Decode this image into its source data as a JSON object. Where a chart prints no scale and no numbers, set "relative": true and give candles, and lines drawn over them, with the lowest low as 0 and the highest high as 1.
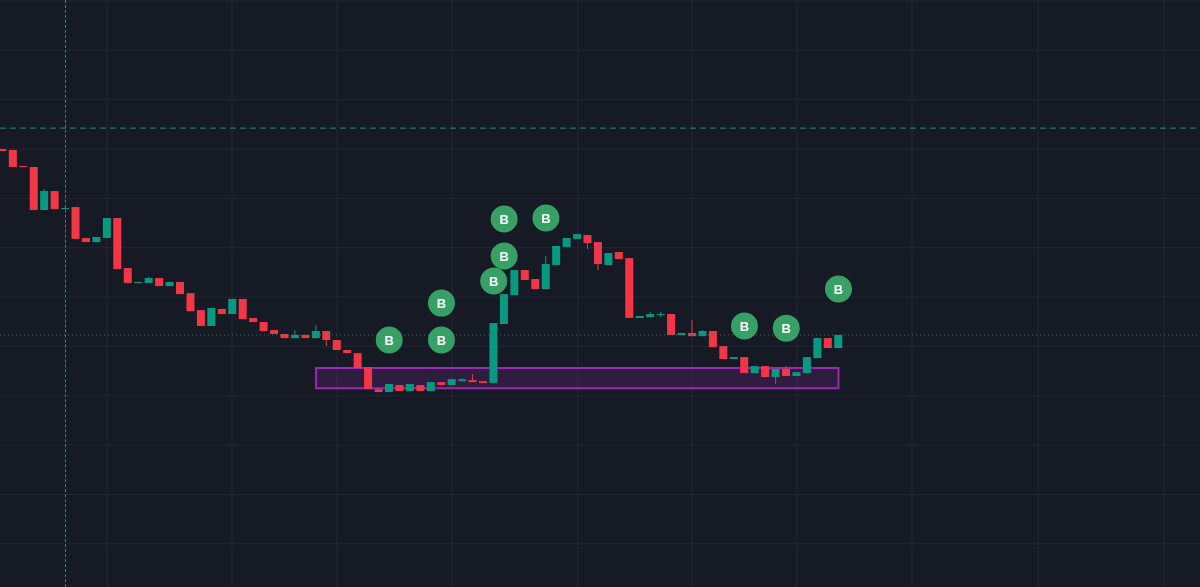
{
  "chart_data": {
    "type": "candlestick",
    "relative": true,
    "tick_labels": false,
    "grid": true,
    "categories": [
      null,
      null,
      null,
      null,
      null,
      null,
      null,
      null,
      null,
      null,
      null,
      null,
      null,
      null,
      null,
      null,
      null,
      null,
      null,
      null,
      null,
      null,
      null,
      null,
      null,
      null,
      null,
      null,
      null,
      null,
      null,
      null,
      null,
      null,
      null,
      null,
      null,
      null,
      null,
      null,
      null,
      null,
      null,
      null,
      null,
      null,
      null,
      null,
      null,
      null,
      null,
      null,
      null,
      null,
      null,
      null,
      null,
      null,
      null,
      null,
      null,
      null,
      null,
      null,
      null,
      null,
      null,
      null,
      null,
      null,
      null,
      null,
      null,
      null,
      null,
      null,
      null,
      null,
      null,
      null,
      null
    ],
    "ohlc": [
      [
        1,
        1,
        0.992,
        0.992
      ],
      [
        0.996,
        0.996,
        0.926,
        0.926
      ],
      [
        0.93,
        0.93,
        0.926,
        0.926
      ],
      [
        0.926,
        0.926,
        0.749,
        0.749
      ],
      [
        0.749,
        0.835,
        0.749,
        0.827
      ],
      [
        0.827,
        0.827,
        0.753,
        0.753
      ],
      [
        0.753,
        0.761,
        0.753,
        0.757
      ],
      [
        0.761,
        0.761,
        0.63,
        0.63
      ],
      [
        0.634,
        0.634,
        0.617,
        0.617
      ],
      [
        0.617,
        0.638,
        0.617,
        0.638
      ],
      [
        0.634,
        0.716,
        0.634,
        0.716
      ],
      [
        0.716,
        0.716,
        0.506,
        0.506
      ],
      [
        0.51,
        0.51,
        0.449,
        0.449
      ],
      [
        0.449,
        0.453,
        0.449,
        0.453
      ],
      [
        0.449,
        0.473,
        0.449,
        0.469
      ],
      [
        0.469,
        0.469,
        0.436,
        0.436
      ],
      [
        0.436,
        0.453,
        0.436,
        0.453
      ],
      [
        0.453,
        0.453,
        0.403,
        0.403
      ],
      [
        0.407,
        0.407,
        0.333,
        0.333
      ],
      [
        0.337,
        0.337,
        0.272,
        0.272
      ],
      [
        0.272,
        0.346,
        0.272,
        0.346
      ],
      [
        0.342,
        0.342,
        0.321,
        0.321
      ],
      [
        0.321,
        0.383,
        0.321,
        0.383
      ],
      [
        0.383,
        0.383,
        0.3,
        0.3
      ],
      [
        0.305,
        0.305,
        0.288,
        0.288
      ],
      [
        0.288,
        0.288,
        0.251,
        0.251
      ],
      [
        0.255,
        0.255,
        0.239,
        0.239
      ],
      [
        0.239,
        0.239,
        0.222,
        0.222
      ],
      [
        0.222,
        0.255,
        0.222,
        0.235
      ],
      [
        0.235,
        0.235,
        0.222,
        0.222
      ],
      [
        0.222,
        0.276,
        0.222,
        0.251
      ],
      [
        0.251,
        0.251,
        0.189,
        0.214
      ],
      [
        0.214,
        0.214,
        0.173,
        0.173
      ],
      [
        0.173,
        0.173,
        0.16,
        0.16
      ],
      [
        0.16,
        0.16,
        0.099,
        0.099
      ],
      [
        0.103,
        0.103,
        0.012,
        0.012
      ],
      [
        0.012,
        0.012,
        0,
        0
      ],
      [
        0,
        0.033,
        0,
        0.033
      ],
      [
        0.029,
        0.029,
        0.004,
        0.004
      ],
      [
        0.004,
        0.033,
        0.004,
        0.033
      ],
      [
        0.029,
        0.029,
        0.004,
        0.004
      ],
      [
        0.004,
        0.041,
        0.004,
        0.041
      ],
      [
        0.041,
        0.041,
        0.029,
        0.029
      ],
      [
        0.029,
        0.053,
        0.029,
        0.053
      ],
      [
        0.045,
        0.058,
        0.045,
        0.053
      ],
      [
        0.049,
        0.074,
        0.041,
        0.041
      ],
      [
        0.045,
        0.045,
        0.037,
        0.037
      ],
      [
        0.037,
        0.284,
        0.037,
        0.284
      ],
      [
        0.28,
        0.403,
        0.28,
        0.403
      ],
      [
        0.399,
        0.502,
        0.399,
        0.502
      ],
      [
        0.502,
        0.502,
        0.461,
        0.461
      ],
      [
        0.465,
        0.465,
        0.424,
        0.424
      ],
      [
        0.424,
        0.56,
        0.424,
        0.527
      ],
      [
        0.523,
        0.601,
        0.523,
        0.601
      ],
      [
        0.597,
        0.634,
        0.597,
        0.634
      ],
      [
        0.63,
        0.65,
        0.63,
        0.65
      ],
      [
        0.646,
        0.646,
        0.588,
        0.613
      ],
      [
        0.617,
        0.617,
        0.502,
        0.527
      ],
      [
        0.523,
        0.572,
        0.523,
        0.572
      ],
      [
        0.576,
        0.576,
        0.547,
        0.547
      ],
      [
        0.551,
        0.551,
        0.305,
        0.305
      ],
      [
        0.305,
        0.313,
        0.305,
        0.313
      ],
      [
        0.309,
        0.329,
        0.309,
        0.321
      ],
      [
        0.317,
        0.329,
        0.309,
        0.321
      ],
      [
        0.321,
        0.321,
        0.235,
        0.235
      ],
      [
        0.235,
        0.243,
        0.235,
        0.243
      ],
      [
        0.243,
        0.296,
        0.23,
        0.23
      ],
      [
        0.23,
        0.255,
        0.23,
        0.251
      ],
      [
        0.251,
        0.251,
        0.185,
        0.185
      ],
      [
        0.189,
        0.189,
        0.136,
        0.136
      ],
      [
        0.136,
        0.144,
        0.136,
        0.144
      ],
      [
        0.144,
        0.144,
        0.078,
        0.078
      ],
      [
        0.078,
        0.107,
        0.078,
        0.107
      ],
      [
        0.107,
        0.107,
        0.062,
        0.062
      ],
      [
        0.062,
        0.095,
        0.033,
        0.095
      ],
      [
        0.095,
        0.107,
        0.066,
        0.066
      ],
      [
        0.066,
        0.082,
        0.066,
        0.082
      ],
      [
        0.078,
        0.144,
        0.078,
        0.144
      ],
      [
        0.14,
        0.222,
        0.14,
        0.222
      ],
      [
        0.222,
        0.222,
        0.181,
        0.181
      ],
      [
        0.181,
        0.235,
        0.181,
        0.235
      ]
    ],
    "colors": [
      "#f23645",
      "#f23645",
      "#f23645",
      "#f23645",
      "#089981",
      "#f23645",
      "#089981",
      "#f23645",
      "#f23645",
      "#089981",
      "#089981",
      "#f23645",
      "#f23645",
      "#089981",
      "#089981",
      "#f23645",
      "#089981",
      "#f23645",
      "#f23645",
      "#f23645",
      "#089981",
      "#f23645",
      "#089981",
      "#f23645",
      "#f23645",
      "#f23645",
      "#f23645",
      "#f23645",
      "#089981",
      "#f23645",
      "#089981",
      "#f23645",
      "#f23645",
      "#f23645",
      "#f23645",
      "#f23645",
      "#f23645",
      "#089981",
      "#f23645",
      "#089981",
      "#f23645",
      "#089981",
      "#f23645",
      "#089981",
      "#089981",
      "#f23645",
      "#f23645",
      "#089981",
      "#089981",
      "#089981",
      "#f23645",
      "#f23645",
      "#089981",
      "#089981",
      "#089981",
      "#089981",
      "#f23645",
      "#f23645",
      "#089981",
      "#f23645",
      "#f23645",
      "#089981",
      "#089981",
      "#089981",
      "#f23645",
      "#089981",
      "#f23645",
      "#089981",
      "#f23645",
      "#f23645",
      "#089981",
      "#f23645",
      "#089981",
      "#f23645",
      "#089981",
      "#f23645",
      "#089981",
      "#089981",
      "#089981",
      "#f23645",
      "#089981"
    ],
    "series": [
      {
        "type": "scatter",
        "name": "B",
        "color": "#37a064",
        "marker": "circle",
        "values": [
          null,
          null,
          null,
          null,
          null,
          null,
          null,
          null,
          null,
          null,
          null,
          null,
          null,
          null,
          null,
          null,
          null,
          null,
          null,
          null,
          null,
          null,
          null,
          null,
          null,
          null,
          null,
          null,
          null,
          null,
          null,
          null,
          null,
          null,
          null,
          null,
          null,
          0.214,
          null,
          null,
          null,
          null,
          0.214,
          null,
          null,
          null,
          null,
          0.457,
          0.56,
          null,
          null,
          null,
          0.716,
          null,
          null,
          null,
          null,
          null,
          null,
          null,
          null,
          null,
          null,
          null,
          null,
          null,
          null,
          null,
          null,
          null,
          null,
          0.272,
          null,
          null,
          null,
          0.263,
          null,
          null,
          null,
          null,
          0.424
        ]
      },
      {
        "type": "scatter",
        "name": "B",
        "color": "#37a064",
        "marker": "circle",
        "values": [
          null,
          null,
          null,
          null,
          null,
          null,
          null,
          null,
          null,
          null,
          null,
          null,
          null,
          null,
          null,
          null,
          null,
          null,
          null,
          null,
          null,
          null,
          null,
          null,
          null,
          null,
          null,
          null,
          null,
          null,
          null,
          null,
          null,
          null,
          null,
          null,
          null,
          null,
          null,
          null,
          null,
          null,
          0.366,
          null,
          null,
          null,
          null,
          null,
          0.712,
          null,
          null,
          null,
          null,
          null,
          null,
          null,
          null,
          null,
          null,
          null,
          null,
          null,
          null,
          null,
          null,
          null,
          null,
          null,
          null,
          null,
          null,
          null,
          null,
          null,
          null,
          null,
          null,
          null,
          null,
          null,
          null
        ]
      }
    ],
    "ref_lines": [
      {
        "axis": "y",
        "value": 1.086,
        "color": "#2b8f74",
        "line_style": "dashed"
      },
      {
        "axis": "y",
        "value": 0.235,
        "color": "#3f6f69",
        "line_style": "dotted"
      }
    ],
    "bands": [
      {
        "axis": "y",
        "from": 0.016,
        "to": 0.099,
        "color": "#9c27b0"
      }
    ]
  }
}
